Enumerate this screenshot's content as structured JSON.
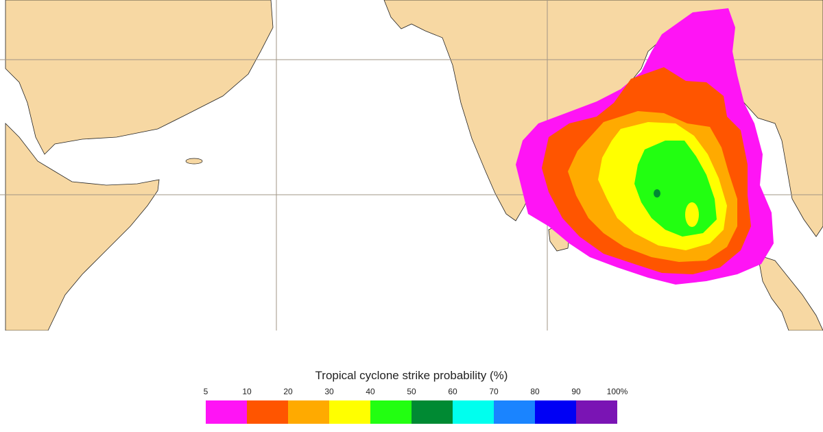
{
  "legend": {
    "title": "Tropical cyclone strike probability (%)",
    "ticks": [
      "5",
      "10",
      "20",
      "30",
      "40",
      "50",
      "60",
      "70",
      "80",
      "90",
      "100%"
    ],
    "colors": [
      "#ff14f5",
      "#ff5500",
      "#ffaa00",
      "#ffff00",
      "#22ff11",
      "#008a33",
      "#00ffee",
      "#1a84ff",
      "#0000f5",
      "#7a14b4"
    ]
  },
  "map": {
    "land_color": "#f7d8a3",
    "ocean_color": "#ffffff",
    "grid_color": "#a09585"
  }
}
